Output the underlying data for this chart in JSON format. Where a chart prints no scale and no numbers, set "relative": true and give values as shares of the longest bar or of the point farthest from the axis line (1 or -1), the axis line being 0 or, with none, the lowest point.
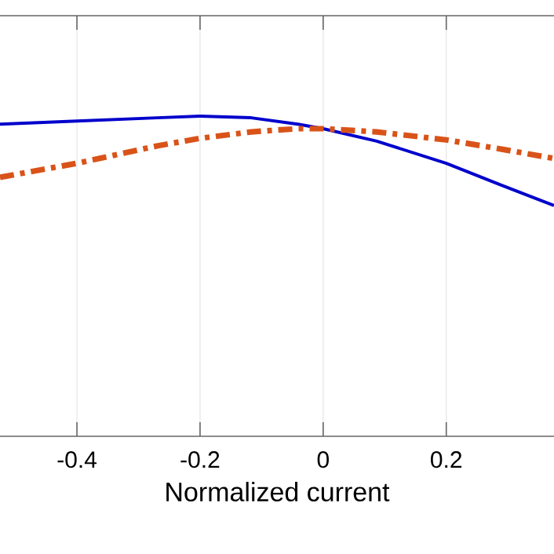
{
  "chart_data": {
    "type": "line",
    "xlabel": "Normalized current",
    "relative": true,
    "grid": true,
    "xlim": [
      -0.525,
      0.375
    ],
    "xticks": [
      -0.4,
      -0.2,
      0,
      0.2
    ],
    "tick_labels": "x",
    "series": [
      {
        "color": "#0000cc",
        "line_style": "solid",
        "x": [
          -0.525,
          -0.4,
          -0.27,
          -0.2,
          -0.117,
          -0.041,
          0,
          0.087,
          0.2,
          0.29,
          0.375
        ],
        "values": [
          0.975,
          0.985,
          0.995,
          1.0,
          0.995,
          0.975,
          0.961,
          0.922,
          0.853,
          0.784,
          0.721
        ]
      },
      {
        "color": "#d95319",
        "line_style": "dashdot",
        "x": [
          -0.525,
          -0.4,
          -0.27,
          -0.2,
          -0.117,
          -0.041,
          0,
          0.087,
          0.2,
          0.29,
          0.375
        ],
        "values": [
          0.809,
          0.853,
          0.907,
          0.931,
          0.951,
          0.961,
          0.961,
          0.951,
          0.926,
          0.897,
          0.868
        ]
      }
    ]
  }
}
